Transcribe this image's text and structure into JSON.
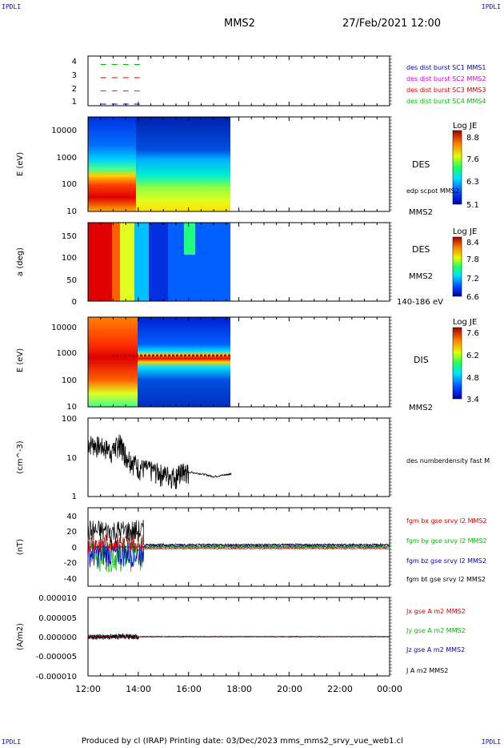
{
  "page": {
    "corner_tl": "IPDLI",
    "corner_tr": "IPDLI",
    "corner_bl": "IPDLI",
    "corner_br": "IPDLI",
    "title_mission": "MMS2",
    "title_time": "27/Feb/2021 12:00",
    "footer": "Produced by cl (IRAP)   Printing date: 03/Dec/2023   mms_mms2_srvy_vue_web1.cl"
  },
  "colors": {
    "green": "#00c000",
    "red": "#e00000",
    "magenta": "#e000e0",
    "blue": "#0000c0",
    "black": "#000000"
  },
  "chart_data": [
    {
      "id": "panel1",
      "type": "line",
      "yticks": [
        "1",
        "2",
        "3",
        "4"
      ],
      "legend": [
        {
          "label": "des dist burst SC1 MMS1",
          "color": "#0000c0"
        },
        {
          "label": "des dist burst SC2 MMS2",
          "color": "#e000e0"
        },
        {
          "label": "des dist burst SC3 MMS3",
          "color": "#e00000"
        },
        {
          "label": "des dist burst SC4 MMS4",
          "color": "#00c000"
        }
      ],
      "series": [
        {
          "y": 4,
          "color": "#00c000"
        },
        {
          "y": 3,
          "color": "#e00000"
        },
        {
          "y": 2,
          "color": "#e000e0"
        },
        {
          "y": 1,
          "color": "#0000c0"
        }
      ],
      "x_extent": [
        12.5,
        14.25
      ]
    },
    {
      "id": "panel2",
      "type": "heatmap",
      "ylabel": "E (eV)",
      "yticks": [
        "10",
        "100",
        "1000",
        "10000"
      ],
      "label_main": "DES",
      "label_sub": "edp scpot MMS2",
      "label_bottom": "MMS2",
      "colorbar": {
        "title": "Log JE",
        "ticks": [
          "8.8",
          "7.6",
          "6.3",
          "5.1"
        ]
      }
    },
    {
      "id": "panel3",
      "type": "heatmap",
      "ylabel": "a (deg)",
      "yticks": [
        "0",
        "50",
        "100",
        "150"
      ],
      "label_main": "DES",
      "label_sub": "MMS2",
      "label_bottom": "140-186 eV",
      "colorbar": {
        "title": "Log JE",
        "ticks": [
          "8.4",
          "7.8",
          "7.2",
          "6.6"
        ]
      }
    },
    {
      "id": "panel4",
      "type": "heatmap",
      "ylabel": "E (eV)",
      "yticks": [
        "10",
        "100",
        "1000",
        "10000"
      ],
      "label_main": "DIS",
      "label_bottom": "MMS2",
      "colorbar": {
        "title": "Log JE",
        "ticks": [
          "7.6",
          "6.2",
          "4.8",
          "3.4"
        ]
      }
    },
    {
      "id": "panel5",
      "type": "line",
      "ylabel": "(cm^-3)",
      "yticks": [
        "1",
        "10",
        "100"
      ],
      "legend": [
        {
          "label": "des numberdensity fast M",
          "color": "#000000"
        }
      ],
      "series": [
        {
          "name": "des numberdensity fast M",
          "x": [
            12.0,
            12.5,
            13.0,
            13.25,
            13.5,
            14.0,
            14.5,
            15.0,
            15.5,
            15.75,
            16.0,
            16.5,
            17.0,
            17.5,
            17.7
          ],
          "y": [
            25,
            20,
            15,
            25,
            12,
            6,
            5,
            4,
            3.5,
            4.5,
            4.2,
            3.8,
            3.2,
            3.6,
            3.8
          ]
        }
      ]
    },
    {
      "id": "panel6",
      "type": "line",
      "ylabel": "(nT)",
      "yticks": [
        "-40",
        "-20",
        "0",
        "20",
        "40"
      ],
      "ylim": [
        -50,
        50
      ],
      "legend": [
        {
          "label": "fgm bx gse srvy l2 MMS2",
          "color": "#e00000"
        },
        {
          "label": "fgm by gse srvy l2 MMS2",
          "color": "#00c000"
        },
        {
          "label": "fgm bz gse srvy l2 MMS2",
          "color": "#0000c0"
        },
        {
          "label": "fgm bt gse srvy l2 MMS2",
          "color": "#000000"
        }
      ]
    },
    {
      "id": "panel7",
      "type": "line",
      "ylabel": "(A/m2)",
      "yticks": [
        "-0.000010",
        "-0.000005",
        "0.000000",
        "0.000005",
        "0.000010"
      ],
      "ylim": [
        -1e-05,
        1e-05
      ],
      "legend": [
        {
          "label": "Jx gse A m2 MMS2",
          "color": "#e00000"
        },
        {
          "label": "Jy gse A m2 MMS2",
          "color": "#00c000"
        },
        {
          "label": "Jz gse A m2 MMS2",
          "color": "#0000c0"
        },
        {
          "label": "J A m2 MMS2",
          "color": "#000000"
        }
      ]
    }
  ],
  "xaxis": {
    "ticks": [
      "12:00",
      "14:00",
      "16:00",
      "18:00",
      "20:00",
      "22:00",
      "00:00"
    ],
    "range": [
      12,
      24
    ]
  }
}
